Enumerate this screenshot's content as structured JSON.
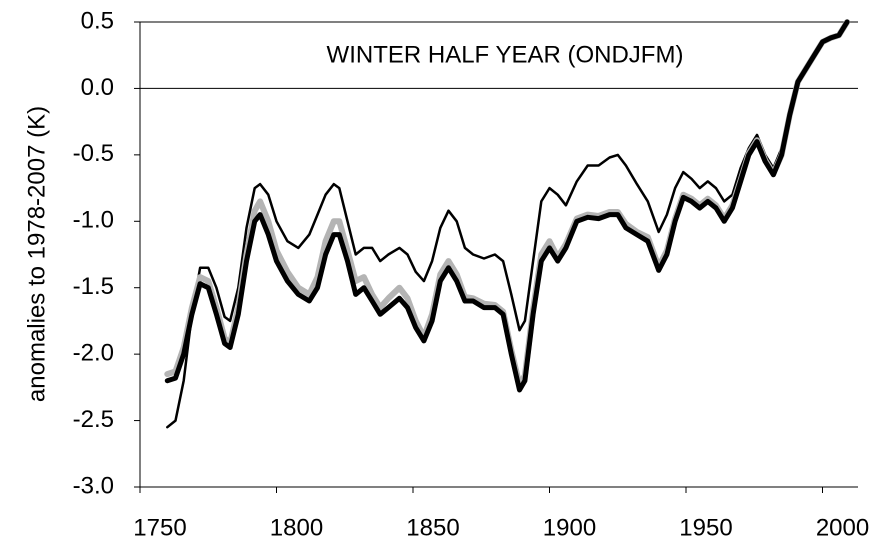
{
  "chart_data": {
    "type": "line",
    "annotation": "WINTER HALF YEAR (ONDJFM)",
    "y_label": "anomalies to 1978-2007  (K)",
    "x": [
      1760,
      1763,
      1766,
      1769,
      1772,
      1775,
      1778,
      1781,
      1783,
      1786,
      1789,
      1792,
      1794,
      1797,
      1800,
      1804,
      1808,
      1812,
      1815,
      1818,
      1821,
      1823,
      1826,
      1829,
      1832,
      1835,
      1838,
      1841,
      1845,
      1848,
      1851,
      1854,
      1857,
      1860,
      1863,
      1866,
      1869,
      1872,
      1876,
      1880,
      1883,
      1886,
      1889,
      1891,
      1894,
      1897,
      1900,
      1903,
      1906,
      1910,
      1914,
      1918,
      1922,
      1925,
      1928,
      1932,
      1936,
      1940,
      1943,
      1946,
      1949,
      1952,
      1955,
      1958,
      1961,
      1964,
      1967,
      1970,
      1973,
      1976,
      1979,
      1982,
      1985,
      1988,
      1991,
      1994,
      1997,
      2000,
      2003,
      2006,
      2009
    ],
    "series": [
      {
        "color": "#000000",
        "line_width": 2.5,
        "values": [
          -2.55,
          -2.5,
          -2.2,
          -1.7,
          -1.35,
          -1.35,
          -1.5,
          -1.72,
          -1.75,
          -1.5,
          -1.05,
          -0.75,
          -0.72,
          -0.8,
          -1.0,
          -1.15,
          -1.2,
          -1.1,
          -0.95,
          -0.8,
          -0.72,
          -0.75,
          -1.0,
          -1.25,
          -1.2,
          -1.2,
          -1.3,
          -1.25,
          -1.2,
          -1.25,
          -1.38,
          -1.45,
          -1.3,
          -1.05,
          -0.92,
          -1.0,
          -1.2,
          -1.25,
          -1.28,
          -1.25,
          -1.3,
          -1.55,
          -1.82,
          -1.75,
          -1.3,
          -0.85,
          -0.75,
          -0.8,
          -0.88,
          -0.7,
          -0.58,
          -0.58,
          -0.52,
          -0.5,
          -0.58,
          -0.72,
          -0.85,
          -1.08,
          -0.95,
          -0.75,
          -0.63,
          -0.68,
          -0.75,
          -0.7,
          -0.75,
          -0.85,
          -0.8,
          -0.6,
          -0.45,
          -0.35,
          -0.5,
          -0.6,
          -0.45,
          -0.18,
          0.05,
          0.15,
          0.25,
          0.35,
          0.38,
          0.4,
          0.5
        ]
      },
      {
        "color": "#b4b4b4",
        "line_width": 6,
        "values": [
          -2.15,
          -2.13,
          -1.95,
          -1.65,
          -1.42,
          -1.45,
          -1.65,
          -1.88,
          -1.92,
          -1.65,
          -1.25,
          -0.92,
          -0.85,
          -1.0,
          -1.22,
          -1.38,
          -1.5,
          -1.55,
          -1.42,
          -1.15,
          -1.0,
          -1.0,
          -1.22,
          -1.45,
          -1.42,
          -1.55,
          -1.65,
          -1.58,
          -1.5,
          -1.58,
          -1.75,
          -1.87,
          -1.7,
          -1.4,
          -1.3,
          -1.4,
          -1.57,
          -1.58,
          -1.62,
          -1.63,
          -1.68,
          -1.97,
          -2.23,
          -2.16,
          -1.66,
          -1.25,
          -1.15,
          -1.27,
          -1.17,
          -0.98,
          -0.95,
          -0.96,
          -0.93,
          -0.93,
          -1.02,
          -1.08,
          -1.12,
          -1.34,
          -1.22,
          -0.98,
          -0.8,
          -0.83,
          -0.88,
          -0.83,
          -0.88,
          -0.98,
          -0.88,
          -0.69,
          -0.49,
          -0.39,
          -0.54,
          -0.64,
          -0.5,
          -0.2,
          0.05,
          0.15,
          0.25,
          0.35,
          0.38,
          0.4,
          0.5
        ]
      },
      {
        "color": "#000000",
        "line_width": 5,
        "values": [
          -2.2,
          -2.18,
          -2.0,
          -1.7,
          -1.47,
          -1.5,
          -1.7,
          -1.92,
          -1.95,
          -1.7,
          -1.3,
          -1.0,
          -0.95,
          -1.1,
          -1.3,
          -1.45,
          -1.55,
          -1.6,
          -1.5,
          -1.25,
          -1.1,
          -1.1,
          -1.3,
          -1.55,
          -1.5,
          -1.6,
          -1.7,
          -1.65,
          -1.58,
          -1.65,
          -1.8,
          -1.9,
          -1.75,
          -1.45,
          -1.35,
          -1.45,
          -1.6,
          -1.6,
          -1.65,
          -1.65,
          -1.7,
          -2.0,
          -2.27,
          -2.2,
          -1.7,
          -1.3,
          -1.2,
          -1.3,
          -1.2,
          -1.0,
          -0.97,
          -0.98,
          -0.95,
          -0.95,
          -1.05,
          -1.1,
          -1.15,
          -1.37,
          -1.25,
          -1.0,
          -0.82,
          -0.85,
          -0.9,
          -0.85,
          -0.9,
          -1.0,
          -0.9,
          -0.7,
          -0.5,
          -0.4,
          -0.55,
          -0.65,
          -0.5,
          -0.2,
          0.05,
          0.15,
          0.25,
          0.35,
          0.38,
          0.4,
          0.5
        ]
      }
    ],
    "xlim": [
      1750,
      2013
    ],
    "xticks": [
      1750,
      1800,
      1850,
      1900,
      1950,
      2000
    ],
    "ylim": [
      -3,
      0.5
    ],
    "yticks": [
      0.5,
      {
        "value": 0,
        "label": "0.0"
      },
      -0.5,
      {
        "value": -1,
        "label": "-1.0"
      },
      -1.5,
      {
        "value": -2,
        "label": "-2.0"
      },
      -2.5,
      {
        "value": -3,
        "label": "-3.0"
      }
    ],
    "reference_line": 0
  }
}
